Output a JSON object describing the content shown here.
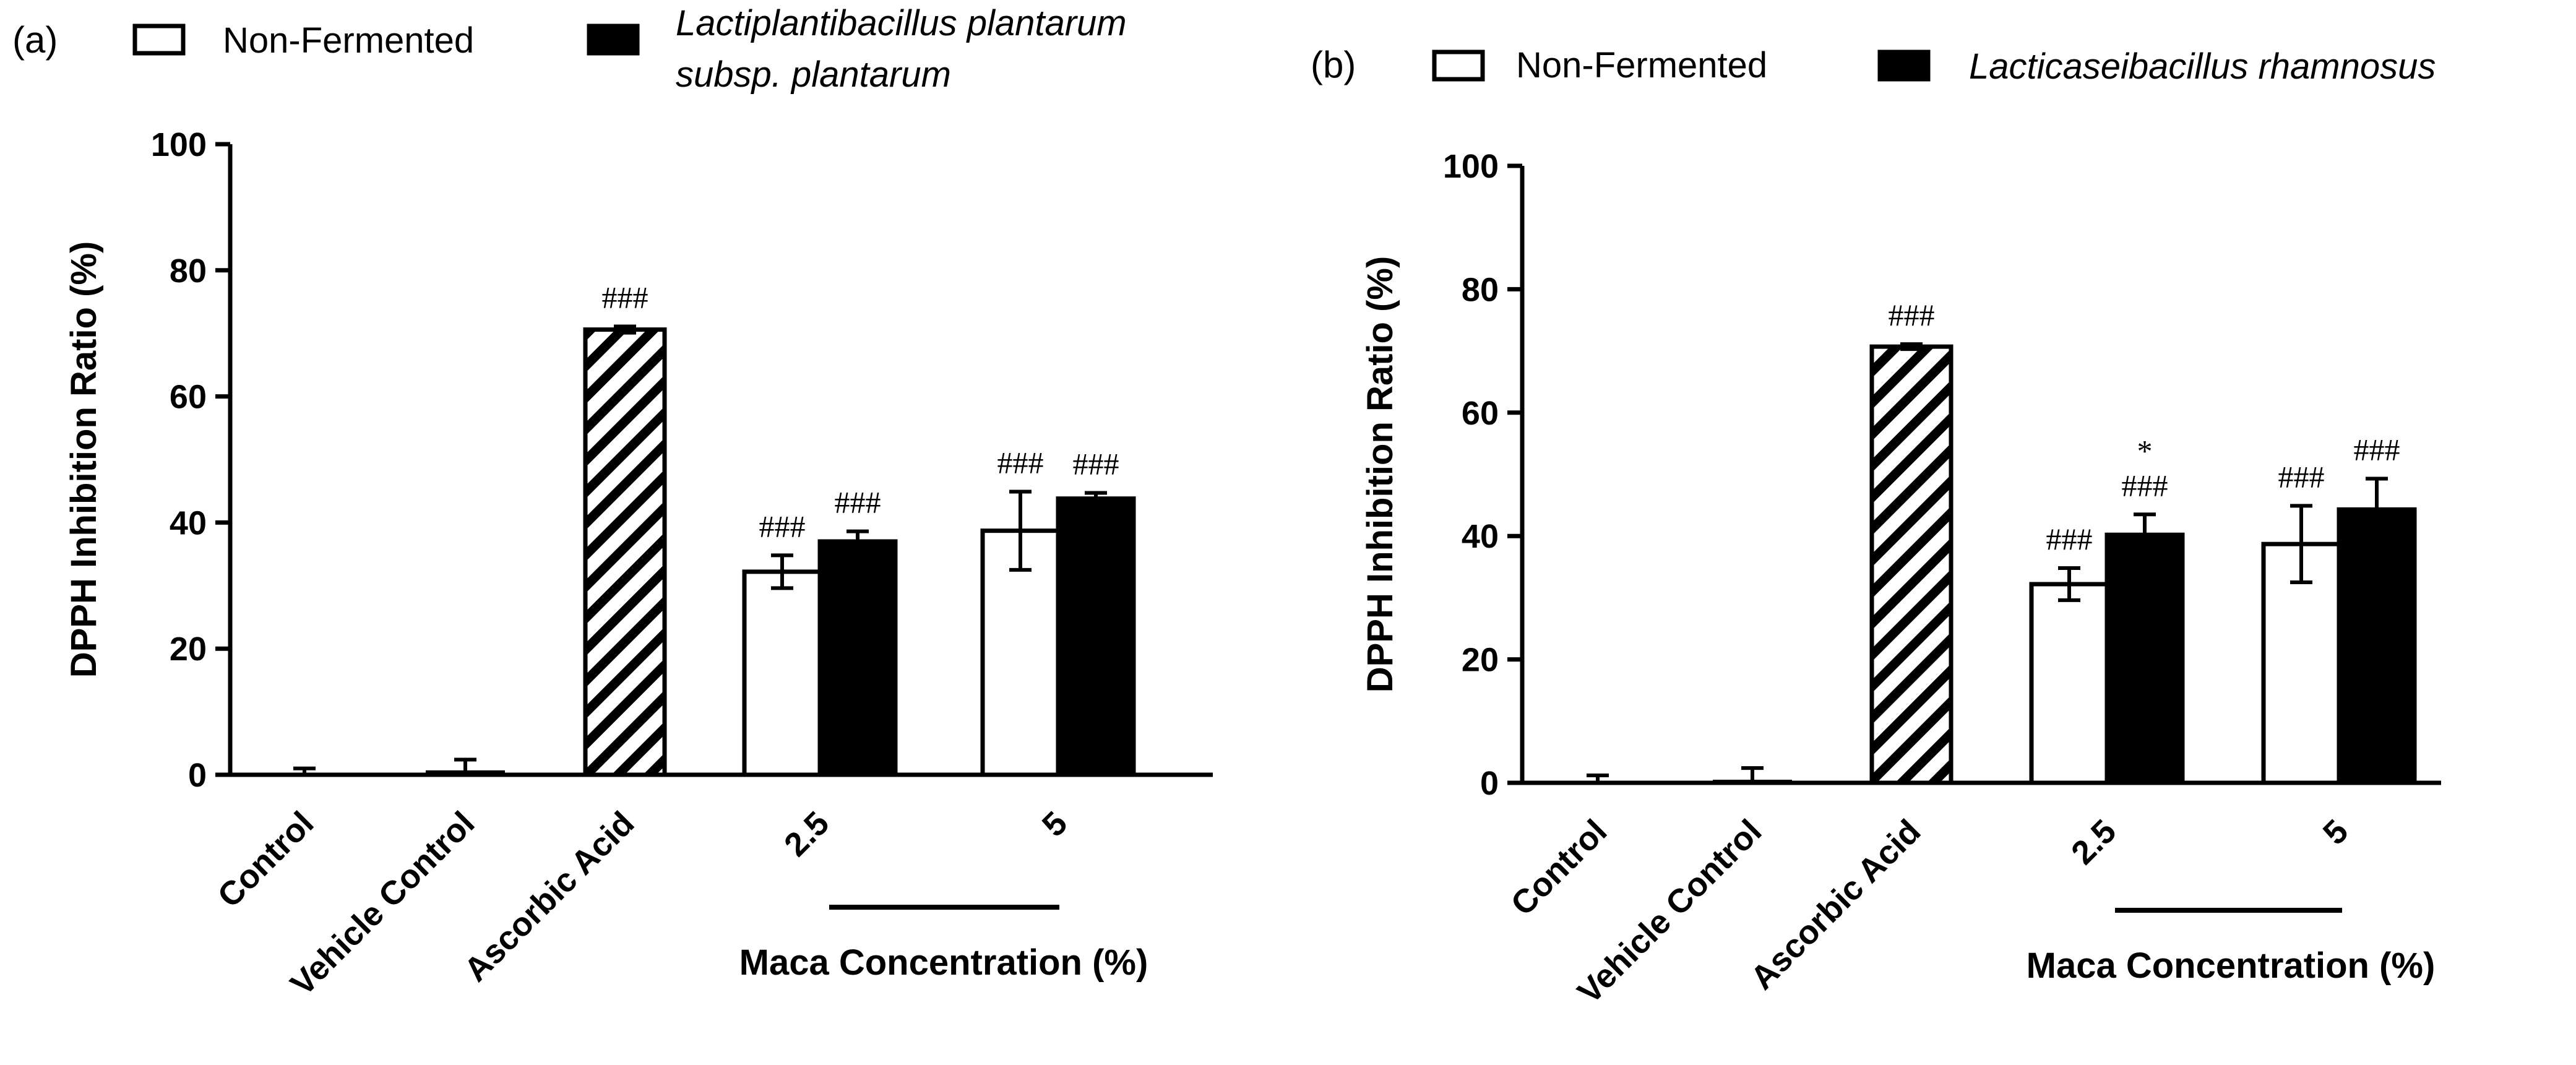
{
  "colors": {
    "fermented": "#000000",
    "non_fermented": "#ffffff",
    "stroke": "#000000"
  },
  "chart_data": [
    {
      "type": "bar",
      "panel_label": "(a)",
      "legend": {
        "non_fermented": "Non-Fermented",
        "fermented_line1": "Lactiplantibacillus plantarum",
        "fermented_line2": "subsp. plantarum"
      },
      "ylabel": "DPPH Inhibition  Ratio (%)",
      "xlabel": "Maca Concentration (%)",
      "ylim": [
        0,
        100
      ],
      "yticks": [
        "0",
        "20",
        "40",
        "60",
        "80",
        "100"
      ],
      "categories": [
        "Control",
        "Vehicle Control",
        "Ascorbic Acid",
        "2.5",
        "5"
      ],
      "series": [
        {
          "name": "Non-Fermented",
          "values": [
            null,
            null,
            null,
            32.2,
            38.7
          ],
          "errors": [
            null,
            null,
            null,
            2.6,
            6.2
          ]
        },
        {
          "name": "Lactiplantibacillus plantarum subsp. plantarum",
          "values": [
            null,
            null,
            null,
            37.0,
            43.8
          ],
          "errors": [
            null,
            null,
            null,
            1.6,
            0.9
          ]
        }
      ],
      "single_bars": [
        {
          "category": "Control",
          "value": 0,
          "error": 1.0,
          "fill": "none"
        },
        {
          "category": "Vehicle Control",
          "value": 0.4,
          "error": 2.0,
          "fill": "none"
        },
        {
          "category": "Ascorbic Acid",
          "value": 70.6,
          "error": 0.5,
          "fill": "hatched"
        }
      ],
      "annotations": [
        {
          "category": "Ascorbic Acid",
          "bar": "single",
          "text": "###"
        },
        {
          "category": "2.5",
          "bar": "non_fermented",
          "text": "###"
        },
        {
          "category": "2.5",
          "bar": "fermented",
          "text": "###"
        },
        {
          "category": "5",
          "bar": "non_fermented",
          "text": "###"
        },
        {
          "category": "5",
          "bar": "fermented",
          "text": "###"
        }
      ]
    },
    {
      "type": "bar",
      "panel_label": "(b)",
      "legend": {
        "non_fermented": "Non-Fermented",
        "fermented_line1": "Lacticaseibacillus rhamnosus",
        "fermented_line2": ""
      },
      "ylabel": "DPPH Inhibition  Ratio (%)",
      "xlabel": "Maca Concentration (%)",
      "ylim": [
        0,
        100
      ],
      "yticks": [
        "0",
        "20",
        "40",
        "60",
        "80",
        "100"
      ],
      "categories": [
        "Control",
        "Vehicle Control",
        "Ascorbic Acid",
        "2.5",
        "5"
      ],
      "series": [
        {
          "name": "Non-Fermented",
          "values": [
            null,
            null,
            null,
            32.2,
            38.7
          ],
          "errors": [
            null,
            null,
            null,
            2.6,
            6.2
          ]
        },
        {
          "name": "Lacticaseibacillus rhamnosus",
          "values": [
            null,
            null,
            null,
            40.2,
            44.3
          ],
          "errors": [
            null,
            null,
            null,
            3.3,
            5.0
          ]
        }
      ],
      "single_bars": [
        {
          "category": "Control",
          "value": 0,
          "error": 1.2,
          "fill": "none"
        },
        {
          "category": "Vehicle Control",
          "value": 0.2,
          "error": 2.2,
          "fill": "none"
        },
        {
          "category": "Ascorbic Acid",
          "value": 70.7,
          "error": 0.4,
          "fill": "hatched"
        }
      ],
      "annotations": [
        {
          "category": "Ascorbic Acid",
          "bar": "single",
          "text": "###"
        },
        {
          "category": "2.5",
          "bar": "non_fermented",
          "text": "###"
        },
        {
          "category": "2.5",
          "bar": "fermented",
          "text": "###",
          "extra": "*"
        },
        {
          "category": "5",
          "bar": "non_fermented",
          "text": "###"
        },
        {
          "category": "5",
          "bar": "fermented",
          "text": "###"
        }
      ]
    }
  ]
}
